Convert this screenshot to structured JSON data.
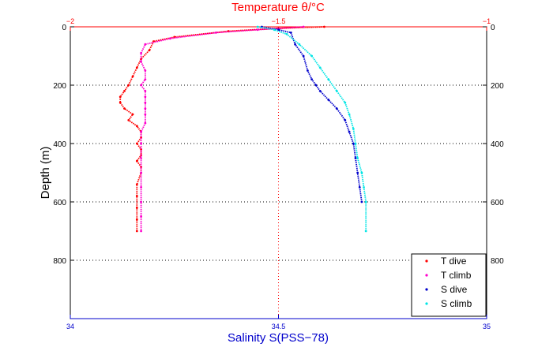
{
  "chart_data": {
    "type": "scatter",
    "title": "Temperature θ/°C",
    "xlabel": "Salinity S(PSS−78)",
    "ylabel": "Depth (m)",
    "top_axis": {
      "label": "Temperature θ/°C",
      "range": [
        -2,
        -1
      ],
      "ticks": [
        -2,
        -1.5,
        -1
      ],
      "tick_labels": [
        "−2",
        "−1.5",
        "−1"
      ],
      "color": "#ff0000"
    },
    "bottom_axis": {
      "label": "Salinity S(PSS−78)",
      "range": [
        34,
        35
      ],
      "ticks": [
        34,
        34.5,
        35
      ],
      "tick_labels": [
        "34",
        "34.5",
        "35"
      ],
      "color": "#0000cc"
    },
    "y_axis": {
      "range": [
        0,
        1000
      ],
      "reversed": true,
      "ticks": [
        0,
        200,
        400,
        600,
        800
      ],
      "tick_labels": [
        "0",
        "200",
        "400",
        "600",
        "800"
      ]
    },
    "grid": true,
    "legend_position": "bottom-right",
    "series": [
      {
        "name": "T dive",
        "axis": "top",
        "color": "#ff0000",
        "x": [
          -1.39,
          -1.5,
          -1.62,
          -1.75,
          -1.8,
          -1.81,
          -1.83,
          -1.84,
          -1.85,
          -1.86,
          -1.87,
          -1.88,
          -1.88,
          -1.87,
          -1.85,
          -1.86,
          -1.84,
          -1.83,
          -1.83,
          -1.84,
          -1.83,
          -1.83,
          -1.84,
          -1.83,
          -1.83,
          -1.84,
          -1.84,
          -1.84,
          -1.84,
          -1.84
        ],
        "y": [
          0,
          5,
          15,
          35,
          50,
          80,
          110,
          140,
          170,
          200,
          220,
          240,
          260,
          280,
          300,
          320,
          340,
          360,
          380,
          400,
          420,
          440,
          460,
          480,
          500,
          540,
          580,
          620,
          660,
          700
        ]
      },
      {
        "name": "T climb",
        "axis": "top",
        "color": "#ff00cc",
        "x": [
          -1.44,
          -1.55,
          -1.65,
          -1.76,
          -1.82,
          -1.83,
          -1.83,
          -1.82,
          -1.82,
          -1.83,
          -1.82,
          -1.82,
          -1.82,
          -1.82,
          -1.82,
          -1.82,
          -1.83,
          -1.83,
          -1.83,
          -1.83,
          -1.83,
          -1.83,
          -1.83,
          -1.83
        ],
        "y": [
          0,
          10,
          20,
          40,
          60,
          90,
          120,
          150,
          180,
          200,
          220,
          240,
          260,
          280,
          300,
          330,
          360,
          400,
          450,
          500,
          550,
          600,
          650,
          700
        ]
      },
      {
        "name": "S dive",
        "axis": "bottom",
        "color": "#0000cc",
        "x": [
          34.46,
          34.5,
          34.53,
          34.54,
          34.56,
          34.57,
          34.58,
          34.59,
          34.6,
          34.62,
          34.64,
          34.66,
          34.67,
          34.68,
          34.685,
          34.69,
          34.695,
          34.7
        ],
        "y": [
          0,
          10,
          20,
          60,
          100,
          150,
          180,
          200,
          220,
          250,
          280,
          320,
          360,
          400,
          450,
          500,
          550,
          600
        ]
      },
      {
        "name": "S climb",
        "axis": "bottom",
        "color": "#00e5e5",
        "x": [
          34.45,
          34.49,
          34.52,
          34.55,
          34.58,
          34.6,
          34.62,
          34.64,
          34.66,
          34.67,
          34.68,
          34.685,
          34.69,
          34.7,
          34.705,
          34.71,
          34.71
        ],
        "y": [
          0,
          10,
          25,
          60,
          100,
          140,
          180,
          220,
          260,
          300,
          350,
          400,
          450,
          500,
          550,
          600,
          700
        ]
      }
    ]
  },
  "legend": {
    "items": [
      {
        "label": "T dive",
        "color": "#ff0000"
      },
      {
        "label": "T climb",
        "color": "#ff00cc"
      },
      {
        "label": "S dive",
        "color": "#0000cc"
      },
      {
        "label": "S climb",
        "color": "#00e5e5"
      }
    ]
  }
}
